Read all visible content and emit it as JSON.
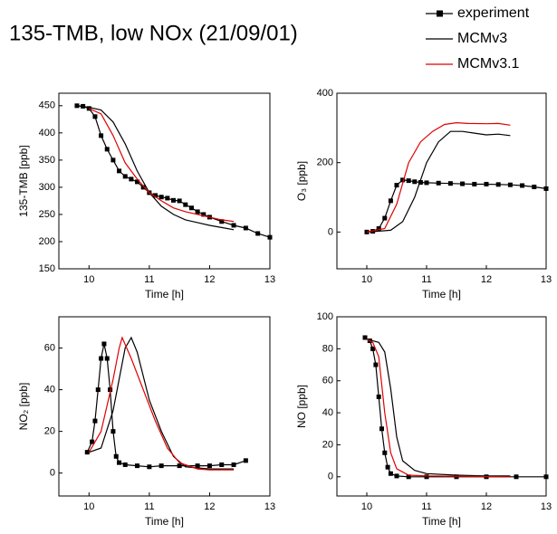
{
  "title": "135-TMB, low NOx (21/09/01)",
  "chart_data": [
    {
      "type": "line",
      "ylabel": "135-TMB [ppb]",
      "xlabel": "Time [h]",
      "xlim": [
        9.5,
        13
      ],
      "xticks": [
        10,
        11,
        12,
        13
      ],
      "ylim": [
        150,
        473
      ],
      "yticks": [
        150,
        200,
        250,
        300,
        350,
        400,
        450
      ],
      "series": [
        {
          "name": "experiment",
          "color": "#000000",
          "marker": "square",
          "x": [
            9.8,
            9.9,
            10.0,
            10.1,
            10.2,
            10.3,
            10.4,
            10.5,
            10.6,
            10.7,
            10.8,
            10.9,
            11.0,
            11.1,
            11.2,
            11.3,
            11.4,
            11.5,
            11.6,
            11.7,
            11.8,
            11.9,
            12.0,
            12.2,
            12.4,
            12.6,
            12.8,
            13.0
          ],
          "values": [
            450,
            449,
            445,
            430,
            395,
            370,
            350,
            330,
            320,
            315,
            310,
            300,
            290,
            285,
            282,
            280,
            276,
            275,
            268,
            262,
            255,
            250,
            245,
            237,
            230,
            225,
            215,
            208
          ]
        },
        {
          "name": "MCMv3",
          "color": "#000000",
          "x": [
            9.8,
            10.0,
            10.2,
            10.4,
            10.6,
            10.8,
            11.0,
            11.2,
            11.4,
            11.6,
            11.8,
            12.0,
            12.2,
            12.4
          ],
          "values": [
            450,
            447,
            442,
            420,
            380,
            330,
            290,
            265,
            250,
            240,
            235,
            230,
            226,
            222
          ]
        },
        {
          "name": "MCMv3.1",
          "color": "#e00000",
          "x": [
            10.0,
            10.2,
            10.4,
            10.6,
            10.8,
            11.0,
            11.2,
            11.4,
            11.6,
            11.8,
            12.0,
            12.2,
            12.4
          ],
          "values": [
            445,
            435,
            395,
            345,
            315,
            290,
            275,
            262,
            255,
            250,
            245,
            240,
            237
          ]
        }
      ]
    },
    {
      "type": "line",
      "ylabel": "O₃ [ppb]",
      "xlabel": "Time [h]",
      "xlim": [
        9.5,
        13
      ],
      "xticks": [
        10,
        11,
        12,
        13
      ],
      "ylim": [
        -106,
        400
      ],
      "yticks": [
        0,
        200,
        400
      ],
      "series": [
        {
          "name": "experiment",
          "color": "#000000",
          "marker": "square",
          "x": [
            10.0,
            10.1,
            10.2,
            10.3,
            10.4,
            10.5,
            10.6,
            10.7,
            10.8,
            10.9,
            11.0,
            11.2,
            11.4,
            11.6,
            11.8,
            12.0,
            12.2,
            12.4,
            12.6,
            12.8,
            13.0
          ],
          "values": [
            0,
            2,
            10,
            40,
            90,
            135,
            150,
            148,
            145,
            143,
            142,
            141,
            140,
            139,
            138,
            138,
            137,
            136,
            134,
            130,
            125
          ]
        },
        {
          "name": "MCMv3",
          "color": "#000000",
          "x": [
            10.0,
            10.4,
            10.6,
            10.8,
            11.0,
            11.2,
            11.4,
            11.6,
            11.8,
            12.0,
            12.2,
            12.4
          ],
          "values": [
            0,
            5,
            30,
            100,
            200,
            260,
            290,
            290,
            285,
            280,
            282,
            278
          ]
        },
        {
          "name": "MCMv3.1",
          "color": "#e00000",
          "x": [
            10.0,
            10.3,
            10.5,
            10.7,
            10.9,
            11.1,
            11.3,
            11.5,
            11.7,
            12.0,
            12.2,
            12.4
          ],
          "values": [
            0,
            10,
            80,
            200,
            260,
            290,
            310,
            315,
            313,
            312,
            313,
            308
          ]
        }
      ]
    },
    {
      "type": "line",
      "ylabel": "NO₂ [ppb]",
      "xlabel": "Time [h]",
      "xlim": [
        9.5,
        13
      ],
      "xticks": [
        10,
        11,
        12,
        13
      ],
      "ylim": [
        -11,
        75
      ],
      "yticks": [
        0,
        20,
        40,
        60
      ],
      "series": [
        {
          "name": "experiment",
          "color": "#000000",
          "marker": "square",
          "x": [
            9.97,
            10.05,
            10.1,
            10.15,
            10.2,
            10.25,
            10.3,
            10.35,
            10.4,
            10.45,
            10.5,
            10.6,
            10.8,
            11.0,
            11.2,
            11.5,
            11.8,
            12.0,
            12.2,
            12.4,
            12.6
          ],
          "values": [
            10,
            15,
            25,
            40,
            55,
            62,
            55,
            40,
            20,
            8,
            5,
            4,
            3.5,
            3,
            3.5,
            3.5,
            3.5,
            3.5,
            4,
            4,
            6
          ]
        },
        {
          "name": "MCMv3",
          "color": "#000000",
          "x": [
            10.0,
            10.2,
            10.4,
            10.6,
            10.7,
            10.8,
            11.0,
            11.2,
            11.4,
            11.6,
            12.0,
            12.4
          ],
          "values": [
            10,
            12,
            30,
            60,
            65,
            58,
            35,
            20,
            8,
            3,
            2,
            2
          ]
        },
        {
          "name": "MCMv3.1",
          "color": "#e00000",
          "x": [
            10.0,
            10.2,
            10.4,
            10.5,
            10.55,
            10.7,
            10.9,
            11.1,
            11.3,
            11.5,
            11.8,
            12.0,
            12.4
          ],
          "values": [
            10,
            20,
            45,
            60,
            65,
            55,
            40,
            25,
            12,
            5,
            2,
            1.5,
            1.5
          ]
        }
      ]
    },
    {
      "type": "line",
      "ylabel": "NO [ppb]",
      "xlabel": "Time [h]",
      "xlim": [
        9.5,
        13
      ],
      "xticks": [
        10,
        11,
        12,
        13
      ],
      "ylim": [
        -12,
        100
      ],
      "yticks": [
        0,
        20,
        40,
        60,
        80,
        100
      ],
      "series": [
        {
          "name": "experiment",
          "color": "#000000",
          "marker": "square",
          "x": [
            9.97,
            10.05,
            10.1,
            10.15,
            10.2,
            10.25,
            10.3,
            10.35,
            10.4,
            10.5,
            10.7,
            11.0,
            11.5,
            12.0,
            12.5,
            13.0
          ],
          "values": [
            87,
            85,
            80,
            70,
            50,
            30,
            15,
            6,
            2,
            0.5,
            0,
            0,
            0,
            0,
            0,
            0
          ]
        },
        {
          "name": "MCMv3",
          "color": "#000000",
          "x": [
            10.0,
            10.2,
            10.3,
            10.4,
            10.5,
            10.6,
            10.8,
            11.0,
            11.5,
            12.0,
            12.4
          ],
          "values": [
            86,
            84,
            78,
            55,
            25,
            10,
            4,
            2,
            1,
            0.5,
            0.5
          ]
        },
        {
          "name": "MCMv3.1",
          "color": "#e00000",
          "x": [
            10.0,
            10.1,
            10.2,
            10.3,
            10.4,
            10.5,
            10.7,
            11.0,
            12.4
          ],
          "values": [
            86,
            84,
            75,
            40,
            15,
            5,
            1,
            0.5,
            0
          ]
        }
      ]
    }
  ]
}
